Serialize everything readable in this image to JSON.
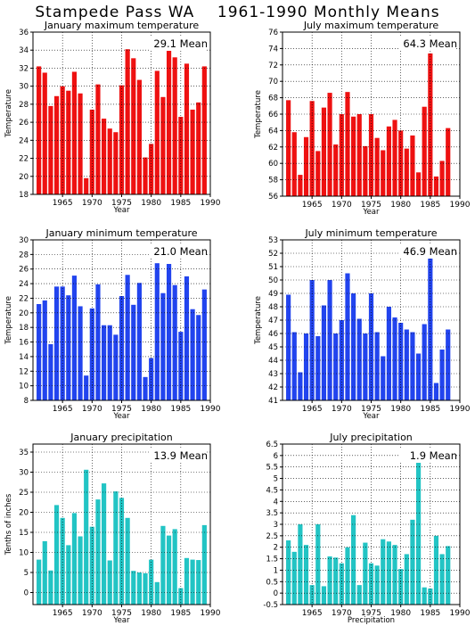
{
  "page_title": "Stampede Pass WA    1961-1990 Monthly Means",
  "chart_data": [
    {
      "type": "bar",
      "title": "January maximum temperature",
      "xlabel": "Year",
      "ylabel": "Temperature",
      "xlim": [
        1960,
        1990
      ],
      "ylim": [
        18,
        36
      ],
      "yticks": [
        18,
        20,
        22,
        24,
        26,
        28,
        30,
        32,
        34,
        36
      ],
      "xticks": [
        1965,
        1970,
        1975,
        1980,
        1985,
        1990
      ],
      "mean_label": "29.1 Mean",
      "color": "#ee1111",
      "x": [
        1961,
        1962,
        1963,
        1964,
        1965,
        1966,
        1967,
        1968,
        1969,
        1970,
        1971,
        1972,
        1973,
        1974,
        1975,
        1976,
        1977,
        1978,
        1979,
        1980,
        1981,
        1982,
        1983,
        1984,
        1985,
        1986,
        1987,
        1988,
        1989
      ],
      "values": [
        32.2,
        31.5,
        27.8,
        28.9,
        30.0,
        29.5,
        31.6,
        29.2,
        19.8,
        27.4,
        30.2,
        26.4,
        25.3,
        24.9,
        30.1,
        34.1,
        33.1,
        30.7,
        22.1,
        23.6,
        31.7,
        28.8,
        34.5,
        33.2,
        26.6,
        32.5,
        27.4,
        28.2,
        32.2
      ]
    },
    {
      "type": "bar",
      "title": "July maximum temperature",
      "xlabel": "Year",
      "ylabel": "Temperature",
      "xlim": [
        1960,
        1990
      ],
      "ylim": [
        56,
        76
      ],
      "yticks": [
        56,
        58,
        60,
        62,
        64,
        66,
        68,
        70,
        72,
        74,
        76
      ],
      "xticks": [
        1965,
        1970,
        1975,
        1980,
        1985,
        1990
      ],
      "mean_label": "64.3 Mean",
      "color": "#ee1111",
      "x": [
        1961,
        1962,
        1963,
        1964,
        1965,
        1966,
        1967,
        1968,
        1969,
        1970,
        1971,
        1972,
        1973,
        1974,
        1975,
        1976,
        1977,
        1978,
        1979,
        1980,
        1981,
        1982,
        1983,
        1984,
        1985,
        1986,
        1987,
        1988
      ],
      "values": [
        67.7,
        63.8,
        58.6,
        63.2,
        67.6,
        61.5,
        66.8,
        68.6,
        62.3,
        66.0,
        68.7,
        65.7,
        66.0,
        62.1,
        66.0,
        63.1,
        61.6,
        64.5,
        65.3,
        64.0,
        61.8,
        63.4,
        58.9,
        66.9,
        73.4,
        58.4,
        60.3,
        64.3
      ]
    },
    {
      "type": "bar",
      "title": "January minimum temperature",
      "xlabel": "Year",
      "ylabel": "Temperature",
      "xlim": [
        1960,
        1990
      ],
      "ylim": [
        8,
        30
      ],
      "yticks": [
        8,
        10,
        12,
        14,
        16,
        18,
        20,
        22,
        24,
        26,
        28,
        30
      ],
      "xticks": [
        1965,
        1970,
        1975,
        1980,
        1985,
        1990
      ],
      "mean_label": "21.0 Mean",
      "color": "#2244ee",
      "x": [
        1961,
        1962,
        1963,
        1964,
        1965,
        1966,
        1967,
        1968,
        1969,
        1970,
        1971,
        1972,
        1973,
        1974,
        1975,
        1976,
        1977,
        1978,
        1979,
        1980,
        1981,
        1982,
        1983,
        1984,
        1985,
        1986,
        1987,
        1988,
        1989
      ],
      "values": [
        21.2,
        21.7,
        15.7,
        23.6,
        23.6,
        22.4,
        25.1,
        20.9,
        11.4,
        20.6,
        23.9,
        18.3,
        18.3,
        17.0,
        22.3,
        25.2,
        21.1,
        24.1,
        11.2,
        13.8,
        26.8,
        22.7,
        26.7,
        23.8,
        17.4,
        25.0,
        20.5,
        19.7,
        23.2
      ]
    },
    {
      "type": "bar",
      "title": "July minimum temperature",
      "xlabel": "Year",
      "ylabel": "Temperature",
      "xlim": [
        1960,
        1990
      ],
      "ylim": [
        41,
        53
      ],
      "yticks": [
        41,
        42,
        43,
        44,
        45,
        46,
        47,
        48,
        49,
        50,
        51,
        52,
        53
      ],
      "xticks": [
        1965,
        1970,
        1975,
        1980,
        1985,
        1990
      ],
      "mean_label": "46.9 Mean",
      "color": "#2244ee",
      "x": [
        1961,
        1962,
        1963,
        1964,
        1965,
        1966,
        1967,
        1968,
        1969,
        1970,
        1971,
        1972,
        1973,
        1974,
        1975,
        1976,
        1977,
        1978,
        1979,
        1980,
        1981,
        1982,
        1983,
        1984,
        1985,
        1986,
        1987,
        1988
      ],
      "values": [
        48.9,
        46.1,
        43.1,
        46.0,
        50.0,
        45.8,
        48.1,
        50.0,
        46.0,
        47.0,
        50.5,
        49.0,
        47.1,
        46.0,
        49.0,
        46.1,
        44.3,
        48.0,
        47.2,
        46.8,
        46.3,
        46.1,
        44.5,
        46.7,
        51.7,
        42.3,
        44.8,
        46.3
      ]
    },
    {
      "type": "bar",
      "title": "January precipitation",
      "xlabel": "Year",
      "ylabel": "Tenths of inches",
      "xlim": [
        1960,
        1990
      ],
      "ylim": [
        -3,
        37
      ],
      "yticks": [
        0,
        5,
        10,
        15,
        20,
        25,
        30,
        35
      ],
      "xticks": [
        1965,
        1970,
        1975,
        1980,
        1985,
        1990
      ],
      "mean_label": "13.9 Mean",
      "color": "#22c4c4",
      "x": [
        1961,
        1962,
        1963,
        1964,
        1965,
        1966,
        1967,
        1968,
        1969,
        1970,
        1971,
        1972,
        1973,
        1974,
        1975,
        1976,
        1977,
        1978,
        1979,
        1980,
        1981,
        1982,
        1983,
        1984,
        1985,
        1986,
        1987,
        1988,
        1989
      ],
      "values": [
        8.2,
        12.8,
        5.5,
        21.8,
        18.6,
        11.8,
        19.8,
        14.0,
        30.6,
        16.4,
        23.2,
        27.2,
        8.0,
        25.2,
        23.6,
        18.6,
        5.4,
        5.0,
        4.8,
        8.2,
        2.6,
        16.6,
        14.2,
        15.8,
        1.1,
        8.6,
        8.2,
        8.1,
        16.8
      ]
    },
    {
      "type": "bar",
      "title": "July precipitation",
      "xlabel": "Precipitation",
      "ylabel": "",
      "xlim": [
        1960,
        1990
      ],
      "ylim": [
        -0.5,
        6.5
      ],
      "yticks": [
        -0.5,
        0,
        0.5,
        1,
        1.5,
        2,
        2.5,
        3,
        3.5,
        4,
        4.5,
        5,
        5.5,
        6,
        6.5
      ],
      "xticks": [
        1965,
        1970,
        1975,
        1980,
        1985,
        1990
      ],
      "mean_label": "1.9 Mean",
      "color": "#22c4c4",
      "x": [
        1961,
        1962,
        1963,
        1964,
        1965,
        1966,
        1967,
        1968,
        1969,
        1970,
        1971,
        1972,
        1973,
        1974,
        1975,
        1976,
        1977,
        1978,
        1979,
        1980,
        1981,
        1982,
        1983,
        1984,
        1985,
        1986,
        1987,
        1988
      ],
      "values": [
        2.3,
        1.8,
        3.0,
        2.1,
        0.35,
        3.0,
        0.3,
        1.6,
        1.55,
        1.3,
        2.0,
        3.4,
        0.35,
        2.2,
        1.3,
        1.2,
        2.35,
        2.25,
        2.1,
        1.05,
        1.7,
        3.2,
        6.0,
        0.25,
        0.2,
        2.5,
        1.7,
        2.05
      ]
    }
  ]
}
